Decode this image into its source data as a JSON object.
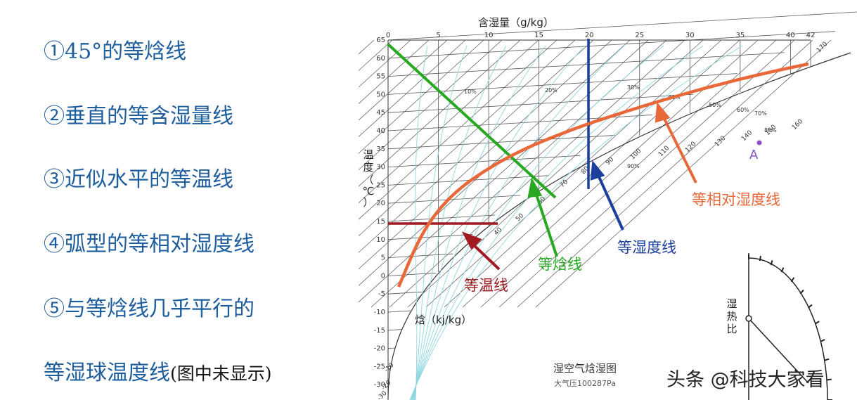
{
  "left_points": [
    {
      "text": "①45°的等焓线",
      "note": ""
    },
    {
      "text": "②垂直的等含湿量线",
      "note": ""
    },
    {
      "text": "③近似水平的等温线",
      "note": ""
    },
    {
      "text": "④弧型的等相对湿度线",
      "note": ""
    },
    {
      "text": "⑤与等焓线几乎平行的",
      "note": ""
    },
    {
      "text": "等湿球温度线",
      "note": "(图中未显示)"
    }
  ],
  "diagram": {
    "top_axis_label": "含湿量（g/kg）",
    "top_ticks": [
      "0",
      "5",
      "10",
      "15",
      "20",
      "25",
      "30",
      "35",
      "40",
      "42"
    ],
    "top_tick_values": [
      0,
      5,
      10,
      15,
      20,
      25,
      30,
      35,
      40,
      42
    ],
    "left_axis_label": [
      "温",
      "度",
      "（",
      "℃",
      "）"
    ],
    "left_ticks": [
      "65",
      "60",
      "55",
      "50",
      "45",
      "40",
      "35",
      "30",
      "25",
      "20",
      "15",
      "10",
      "5",
      "0",
      "-5",
      "-10",
      "-15",
      "-20",
      "-25",
      "-30"
    ],
    "left_tick_values": [
      65,
      60,
      55,
      50,
      45,
      40,
      35,
      30,
      25,
      20,
      15,
      10,
      5,
      0,
      -5,
      -10,
      -15,
      -20,
      -25,
      -30
    ],
    "enthalpy_label": "焓（kj/kg）",
    "enthalpy_scale": [
      "-10",
      "-20",
      "-30",
      "40",
      "50",
      "60",
      "70",
      "80",
      "90",
      "100",
      "110",
      "120",
      "130",
      "140",
      "150",
      "160",
      "170"
    ],
    "rh_labels": [
      "10%",
      "20%",
      "30%",
      "40%",
      "50%",
      "60%",
      "70%",
      "80%",
      "90%"
    ],
    "chart_title": "湿空气焓湿图",
    "pressure_note": "大气压100287Pa",
    "point_a": "A",
    "ratio_label": [
      "湿",
      "热",
      "比"
    ],
    "callouts": {
      "temperature": "等温线",
      "enthalpy": "等焓线",
      "humidity": "等湿度线",
      "relative_humidity": "等相对湿度线"
    },
    "colors": {
      "temperature": "#a11a22",
      "enthalpy": "#27a821",
      "humidity": "#1c3f9e",
      "relative_humidity": "#e8683a",
      "grid": "#555555",
      "rh_grid": "#8fd6e0"
    }
  },
  "watermark": "头条 @科技大家看"
}
